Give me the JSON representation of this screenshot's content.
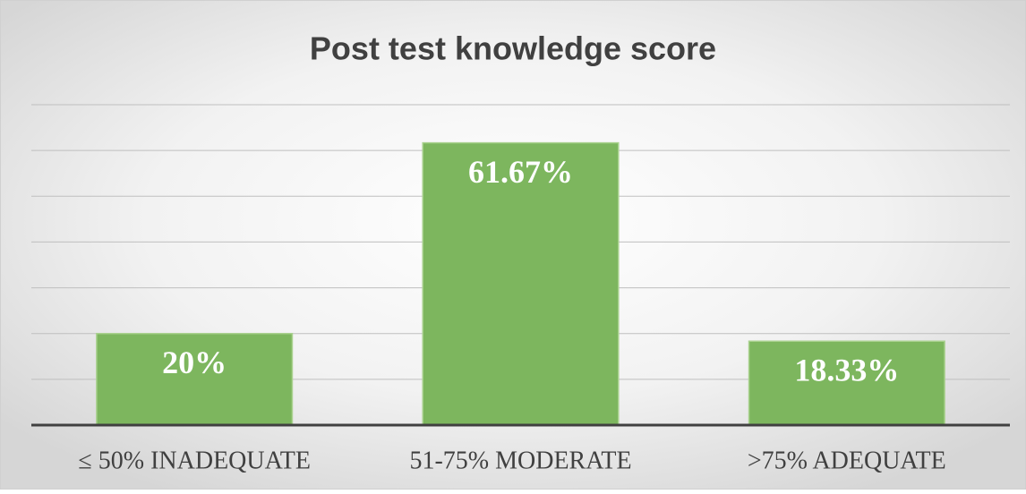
{
  "chart_data": {
    "type": "bar",
    "title": "Post test knowledge score",
    "categories": [
      "≤ 50% INADEQUATE",
      "51-75% MODERATE",
      ">75% ADEQUATE"
    ],
    "values": [
      20,
      61.67,
      18.33
    ],
    "value_labels": [
      "20%",
      "61.67%",
      "18.33%"
    ],
    "color": "#7db65e",
    "ylim": [
      0,
      70
    ],
    "yticks": [
      0,
      10,
      20,
      30,
      40,
      50,
      60,
      70
    ],
    "grid": true
  }
}
